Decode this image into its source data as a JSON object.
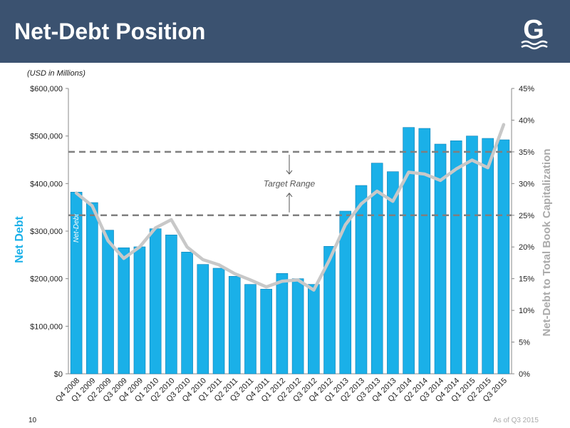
{
  "slide": {
    "title": "Net-Debt Position",
    "units_note": "(USD in Millions)",
    "page_number": "10",
    "as_of": "As of Q3 2015",
    "logo_letter": "G"
  },
  "colors": {
    "header_bg": "#3b5270",
    "bar": "#1ab0e8",
    "bar_edge": "#0b7fb5",
    "line": "#c8c8c8",
    "target": "#7f7f7f",
    "left_axis_label": "#1ab0e8",
    "right_axis_label": "#aaaaaa"
  },
  "chart_data": {
    "type": "bar",
    "categories": [
      "Q4 2008",
      "Q1 2009",
      "Q2 2009",
      "Q3 2009",
      "Q4 2009",
      "Q1 2010",
      "Q2 2010",
      "Q3 2010",
      "Q4 2010",
      "Q1 2011",
      "Q2 2011",
      "Q3 2011",
      "Q4 2011",
      "Q1 2012",
      "Q2 2012",
      "Q3 2012",
      "Q4 2012",
      "Q1 2013",
      "Q2 2013",
      "Q3 2013",
      "Q4 2013",
      "Q1 2014",
      "Q2 2014",
      "Q3 2014",
      "Q4 2014",
      "Q1 2015",
      "Q2 2015",
      "Q3 2015"
    ],
    "series": [
      {
        "name": "Net-Debt",
        "axis": "left",
        "type": "bar",
        "values": [
          382000,
          360000,
          302000,
          265000,
          267000,
          305000,
          292000,
          256000,
          230000,
          222000,
          205000,
          188000,
          178000,
          211000,
          200000,
          188000,
          268000,
          342000,
          396000,
          443000,
          425000,
          518000,
          516000,
          483000,
          490000,
          500000,
          495000,
          492000
        ]
      },
      {
        "name": "",
        "axis": "right",
        "type": "line",
        "values": [
          28.5,
          26.5,
          21.0,
          18.2,
          20.0,
          23.0,
          24.3,
          20.0,
          18.0,
          17.2,
          15.8,
          14.8,
          13.7,
          14.6,
          14.8,
          13.2,
          18.0,
          23.5,
          26.8,
          28.8,
          27.2,
          31.8,
          31.5,
          30.5,
          32.3,
          33.7,
          32.5,
          39.3
        ]
      }
    ],
    "ylabel": "Net Debt",
    "ylabel_right": "Net-Debt to Total Book Capitalization",
    "ylim": [
      0,
      600000
    ],
    "ylim_right": [
      0,
      45
    ],
    "y_ticks": [
      "$0",
      "$100,000",
      "$200,000",
      "$300,000",
      "$400,000",
      "$500,000",
      "$600,000"
    ],
    "y_ticks_right": [
      "0%",
      "5%",
      "10%",
      "15%",
      "20%",
      "25%",
      "30%",
      "35%",
      "40%",
      "45%"
    ],
    "target_range": {
      "label": "Target Range",
      "low": 25,
      "high": 35
    },
    "grid": false,
    "legend": "none"
  }
}
